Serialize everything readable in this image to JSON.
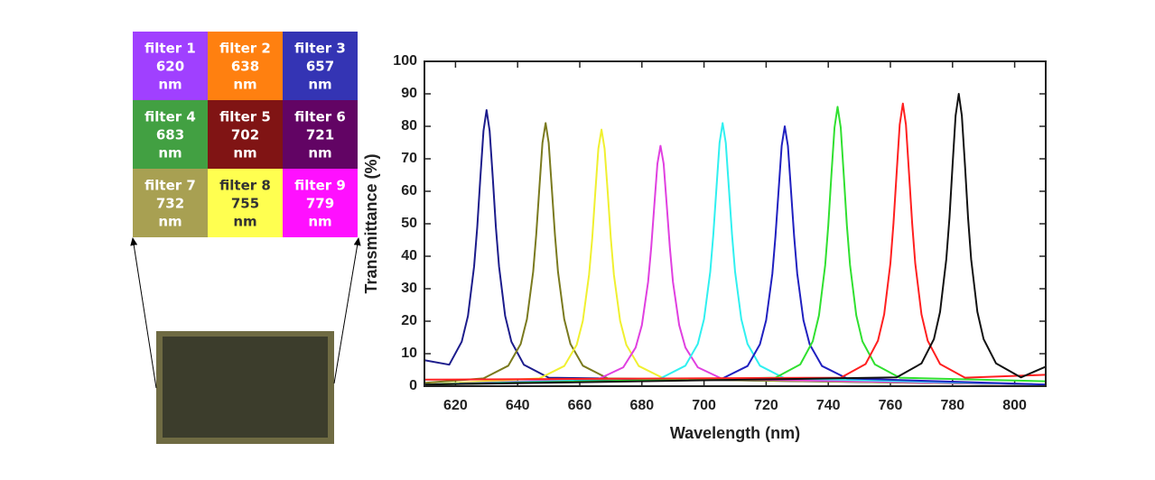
{
  "filter_grid": {
    "cells": [
      {
        "label": "filter 1",
        "wavelength": 620,
        "unit": "nm",
        "color": "#a040ff",
        "text_color": "#ffffff"
      },
      {
        "label": "filter 2",
        "wavelength": 638,
        "unit": "nm",
        "color": "#ff8010",
        "text_color": "#ffffff"
      },
      {
        "label": "filter 3",
        "wavelength": 657,
        "unit": "nm",
        "color": "#3434b4",
        "text_color": "#ffffff"
      },
      {
        "label": "filter 4",
        "wavelength": 683,
        "unit": "nm",
        "color": "#42a042",
        "text_color": "#ffffff"
      },
      {
        "label": "filter 5",
        "wavelength": 702,
        "unit": "nm",
        "color": "#801414",
        "text_color": "#ffffff"
      },
      {
        "label": "filter 6",
        "wavelength": 721,
        "unit": "nm",
        "color": "#620464",
        "text_color": "#ffffff"
      },
      {
        "label": "filter 7",
        "wavelength": 732,
        "unit": "nm",
        "color": "#a8a052",
        "text_color": "#ffffff"
      },
      {
        "label": "filter 8",
        "wavelength": 755,
        "unit": "nm",
        "color": "#ffff50",
        "text_color": "#333333"
      },
      {
        "label": "filter 9",
        "wavelength": 779,
        "unit": "nm",
        "color": "#ff10ff",
        "text_color": "#ffffff"
      }
    ]
  },
  "chart_data": {
    "type": "line",
    "x_label": "Wavelength (nm)",
    "y_label": "Transmittance (%)",
    "xlim": [
      610,
      810
    ],
    "xticks": [
      620,
      640,
      660,
      680,
      700,
      720,
      740,
      760,
      780,
      800
    ],
    "ylim": [
      0,
      100
    ],
    "yticks": [
      0,
      10,
      20,
      30,
      40,
      50,
      60,
      70,
      80,
      90,
      100
    ],
    "series": [
      {
        "color": "#1c1c8c",
        "x": [
          610,
          618,
          622,
          624,
          626,
          627,
          628,
          629,
          630,
          631,
          632,
          633,
          634,
          636,
          638,
          642,
          650,
          810
        ],
        "values": [
          8,
          6.6,
          13.7,
          21.6,
          36.9,
          49.0,
          64.1,
          78.6,
          85,
          78.6,
          64.1,
          49.0,
          36.9,
          21.6,
          13.7,
          6.6,
          2.6,
          0.5
        ]
      },
      {
        "color": "#7a7a1e",
        "x": [
          610,
          629,
          637,
          641,
          643,
          645,
          646,
          647,
          648,
          649,
          650,
          651,
          652,
          653,
          655,
          657,
          661,
          669,
          810
        ],
        "values": [
          1,
          2.4,
          6.3,
          13.0,
          20.6,
          35.2,
          46.7,
          61.1,
          74.9,
          81,
          74.9,
          61.1,
          46.7,
          35.2,
          20.6,
          13.0,
          6.3,
          2.4,
          0.5
        ]
      },
      {
        "color": "#f0f030",
        "x": [
          610,
          647,
          655,
          659,
          661,
          663,
          664,
          665,
          666,
          667,
          668,
          669,
          670,
          671,
          673,
          675,
          679,
          687,
          810
        ],
        "values": [
          0.5,
          2.4,
          6.2,
          12.7,
          20.1,
          34.3,
          45.5,
          59.6,
          73.1,
          79,
          73.1,
          59.6,
          45.5,
          34.3,
          20.1,
          12.7,
          6.2,
          2.4,
          0.5
        ]
      },
      {
        "color": "#e040e0",
        "x": [
          610,
          666,
          674,
          678,
          680,
          682,
          683,
          684,
          685,
          686,
          687,
          688,
          689,
          690,
          692,
          694,
          698,
          706,
          810
        ],
        "values": [
          0.5,
          2.2,
          5.8,
          11.9,
          18.8,
          32.1,
          42.6,
          55.8,
          68.5,
          74,
          68.5,
          55.8,
          42.6,
          32.1,
          18.8,
          11.9,
          5.8,
          2.2,
          0.5
        ]
      },
      {
        "color": "#30f0f0",
        "x": [
          610,
          686,
          694,
          698,
          700,
          702,
          703,
          704,
          705,
          706,
          707,
          708,
          709,
          710,
          712,
          714,
          718,
          726,
          810
        ],
        "values": [
          0.5,
          2.4,
          6.3,
          13.0,
          20.6,
          35.2,
          46.7,
          61.1,
          74.9,
          81,
          74.9,
          61.1,
          46.7,
          35.2,
          20.6,
          13.0,
          6.3,
          2.4,
          0.5
        ]
      },
      {
        "color": "#2020c0",
        "x": [
          610,
          706,
          714,
          718,
          720,
          722,
          723,
          724,
          725,
          726,
          727,
          728,
          729,
          730,
          732,
          734,
          738,
          746,
          810
        ],
        "values": [
          0.5,
          2.4,
          6.2,
          12.9,
          20.3,
          34.7,
          46.1,
          60.3,
          74.0,
          80,
          74.0,
          60.3,
          46.1,
          34.7,
          20.3,
          12.9,
          6.2,
          2.4,
          0.5
        ]
      },
      {
        "color": "#30e030",
        "x": [
          610,
          723,
          731,
          735,
          737,
          739,
          740,
          741,
          742,
          743,
          744,
          745,
          746,
          747,
          749,
          751,
          755,
          763,
          810
        ],
        "values": [
          0.5,
          2.6,
          6.7,
          13.8,
          21.8,
          37.3,
          49.5,
          64.8,
          79.6,
          86,
          79.6,
          64.8,
          49.5,
          37.3,
          21.8,
          13.8,
          6.7,
          2.6,
          1.5
        ]
      },
      {
        "color": "#ff2020",
        "x": [
          610,
          744,
          752,
          756,
          758,
          760,
          761,
          762,
          763,
          764,
          765,
          766,
          767,
          768,
          770,
          772,
          776,
          784,
          810
        ],
        "values": [
          2,
          2.6,
          6.8,
          14.0,
          22.1,
          37.8,
          50.1,
          65.6,
          80.5,
          87,
          80.5,
          65.6,
          50.1,
          37.8,
          22.1,
          14.0,
          6.8,
          2.6,
          3.5
        ]
      },
      {
        "color": "#111111",
        "x": [
          610,
          762,
          770,
          774,
          776,
          778,
          779,
          780,
          781,
          782,
          783,
          784,
          785,
          786,
          788,
          790,
          794,
          802,
          810
        ],
        "values": [
          0.5,
          2.7,
          7.0,
          14.5,
          22.9,
          39.1,
          51.8,
          67.9,
          83.3,
          90,
          83.3,
          67.9,
          51.8,
          39.1,
          22.9,
          14.5,
          7.0,
          2.7,
          6
        ]
      }
    ]
  }
}
